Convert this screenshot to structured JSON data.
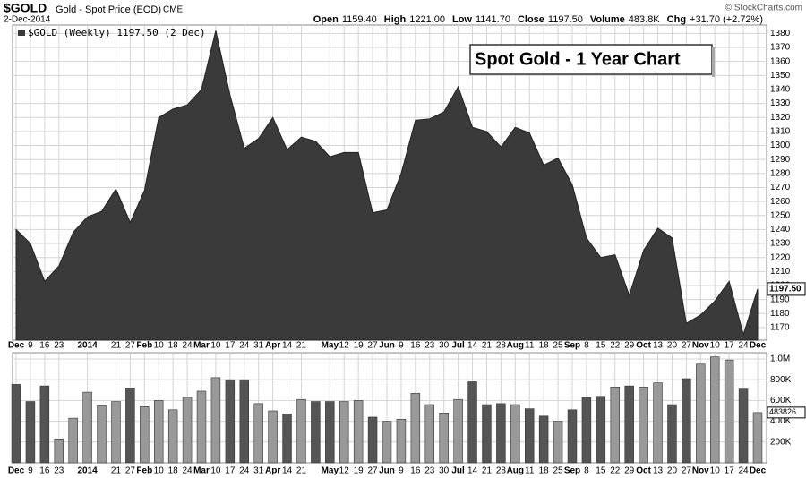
{
  "header": {
    "symbol": "$GOLD",
    "name": "Gold - Spot Price (EOD)",
    "exchange": "CME",
    "date": "2-Dec-2014",
    "copyright": "© StockCharts.com",
    "quote": [
      {
        "label": "Open",
        "value": "1159.40"
      },
      {
        "label": "High",
        "value": "1221.00"
      },
      {
        "label": "Low",
        "value": "1141.70"
      },
      {
        "label": "Close",
        "value": "1197.50"
      },
      {
        "label": "Volume",
        "value": "483.8K"
      },
      {
        "label": "Chg",
        "value": "+31.70 (+2.72%)"
      }
    ]
  },
  "chart_data": [
    {
      "type": "area",
      "legend": "$GOLD (Weekly) 1197.50 (2 Dec)",
      "annotation": "Spot Gold - 1 Year Chart",
      "color": "#3a3a3a",
      "grid": true,
      "categories": [
        "Dec",
        "9",
        "16",
        "23",
        null,
        "2014",
        null,
        "21",
        "27",
        "Feb",
        "10",
        "18",
        "24",
        "Mar",
        "10",
        "17",
        "24",
        "31",
        "Apr",
        "14",
        "21",
        null,
        "May",
        "12",
        "19",
        "27",
        "Jun",
        "9",
        "16",
        "23",
        "30",
        "Jul",
        "14",
        "21",
        "28",
        "Aug",
        "11",
        "18",
        "25",
        "Sep",
        "8",
        "15",
        "22",
        "29",
        "Oct",
        "13",
        "20",
        "27",
        "Nov",
        "10",
        "17",
        "24",
        "Dec"
      ],
      "values": [
        1240,
        1230,
        1203,
        1214,
        1238,
        1249,
        1253,
        1269,
        1245,
        1268,
        1320,
        1326,
        1329,
        1340,
        1382,
        1336,
        1298,
        1305,
        1320,
        1297,
        1306,
        1303,
        1292,
        1295,
        1295,
        1252,
        1254,
        1280,
        1318,
        1319,
        1324,
        1342,
        1313,
        1310,
        1299,
        1313,
        1309,
        1286,
        1291,
        1272,
        1234,
        1220,
        1222,
        1193,
        1225,
        1241,
        1234,
        1173,
        1179,
        1189,
        1203,
        1165,
        1197.5
      ],
      "last_label": "1197.50",
      "ylim": [
        1161,
        1386
      ],
      "yticks": [
        1170,
        1180,
        1190,
        1200,
        1210,
        1220,
        1230,
        1240,
        1250,
        1260,
        1270,
        1280,
        1290,
        1300,
        1310,
        1320,
        1330,
        1340,
        1350,
        1360,
        1370,
        1380
      ]
    },
    {
      "type": "bar",
      "up_color": "#999999",
      "down_color": "#555555",
      "grid": true,
      "values": [
        755000,
        590000,
        740000,
        230000,
        430000,
        680000,
        550000,
        590000,
        720000,
        540000,
        600000,
        510000,
        630000,
        690000,
        820000,
        800000,
        800000,
        570000,
        500000,
        470000,
        610000,
        590000,
        590000,
        590000,
        600000,
        440000,
        400000,
        420000,
        670000,
        560000,
        480000,
        610000,
        780000,
        560000,
        570000,
        560000,
        520000,
        450000,
        400000,
        510000,
        630000,
        640000,
        730000,
        740000,
        730000,
        770000,
        560000,
        810000,
        950000,
        1020000,
        990000,
        710000,
        483826
      ],
      "ylim": [
        0,
        1060000
      ],
      "yticks": [
        {
          "value": 200000,
          "label": "200K"
        },
        {
          "value": 400000,
          "label": "400K"
        },
        {
          "value": 600000,
          "label": "600K"
        },
        {
          "value": 800000,
          "label": "800K"
        },
        {
          "value": 1000000,
          "label": "1.0M"
        }
      ]
    }
  ]
}
